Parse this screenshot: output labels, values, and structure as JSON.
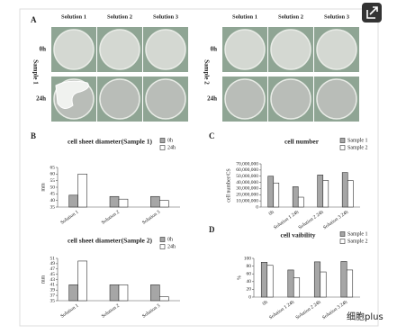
{
  "figure": {
    "panel_a": {
      "label": "A",
      "groups": [
        {
          "name": "Sample 1",
          "columns": [
            "Solution 1",
            "Solution 2",
            "Solution 3"
          ],
          "rows": [
            "0h",
            "24h"
          ]
        },
        {
          "name": "Sample 2",
          "columns": [
            "Solution 1",
            "Solution 2",
            "Solution 3"
          ],
          "rows": [
            "0h",
            "24h"
          ]
        }
      ]
    },
    "panel_labels": [
      "B",
      "C",
      "D"
    ],
    "watermark": "细胞plus"
  },
  "chart_data": [
    {
      "type": "bar",
      "title": "cell sheet diameter(Sample 1)",
      "y_label": "mm",
      "categories": [
        "Solution 1",
        "Solution 2",
        "Solution 3"
      ],
      "series": [
        {
          "name": "0h",
          "color": "#a6a6a6",
          "values": [
            44,
            43,
            43
          ]
        },
        {
          "name": "24h",
          "color": "#ffffff",
          "values": [
            60,
            41,
            40
          ]
        }
      ],
      "ylim": [
        35,
        65
      ],
      "yticks": [
        35,
        40,
        45,
        50,
        55,
        60,
        65
      ],
      "legend": "upper right"
    },
    {
      "type": "bar",
      "title": "cell sheet diameter(Sample 2)",
      "y_label": "mm",
      "categories": [
        "Solution 1",
        "Solution 2",
        "Solution 3"
      ],
      "series": [
        {
          "name": "0h",
          "color": "#a6a6a6",
          "values": [
            41,
            41,
            41
          ]
        },
        {
          "name": "24h",
          "color": "#ffffff",
          "values": [
            50,
            41,
            36.5
          ]
        }
      ],
      "ylim": [
        35,
        51
      ],
      "yticks": [
        35,
        37,
        39,
        41,
        43,
        45,
        47,
        49,
        51
      ],
      "legend": "upper right"
    },
    {
      "type": "bar",
      "title": "cell number",
      "y_label": "cell number/CS",
      "categories": [
        "0h",
        "Solution 1 24h",
        "Solution 2 24h",
        "Solution 3 24h"
      ],
      "series": [
        {
          "name": "Sample 1",
          "color": "#a6a6a6",
          "values": [
            50000000,
            33000000,
            52000000,
            56000000
          ]
        },
        {
          "name": "Sample 2",
          "color": "#ffffff",
          "values": [
            39000000,
            16000000,
            43000000,
            43000000
          ]
        }
      ],
      "ylim": [
        0,
        70000000
      ],
      "yticks": [
        0,
        {
          "value": 10000000,
          "label": "10,000,000"
        },
        {
          "value": 20000000,
          "label": "20,000,000"
        },
        {
          "value": 30000000,
          "label": "30,000,000"
        },
        {
          "value": 40000000,
          "label": "40,000,000"
        },
        {
          "value": 50000000,
          "label": "50,000,000"
        },
        {
          "value": 60000000,
          "label": "60,000,000"
        },
        {
          "value": 70000000,
          "label": "70,000,000"
        }
      ],
      "legend": "upper right"
    },
    {
      "type": "bar",
      "title": "cell vaibility",
      "y_label": "%",
      "categories": [
        "0h",
        "Solution 1 24h",
        "Solution 2 24h",
        "Solution 3 24h"
      ],
      "series": [
        {
          "name": "Sample 1",
          "color": "#a6a6a6",
          "values": [
            90,
            70,
            91,
            92
          ]
        },
        {
          "name": "Sample 2",
          "color": "#ffffff",
          "values": [
            82,
            50,
            65,
            70
          ]
        }
      ],
      "ylim": [
        0,
        100
      ],
      "yticks": [
        0,
        20,
        40,
        60,
        80,
        100
      ],
      "legend": "upper right"
    }
  ]
}
